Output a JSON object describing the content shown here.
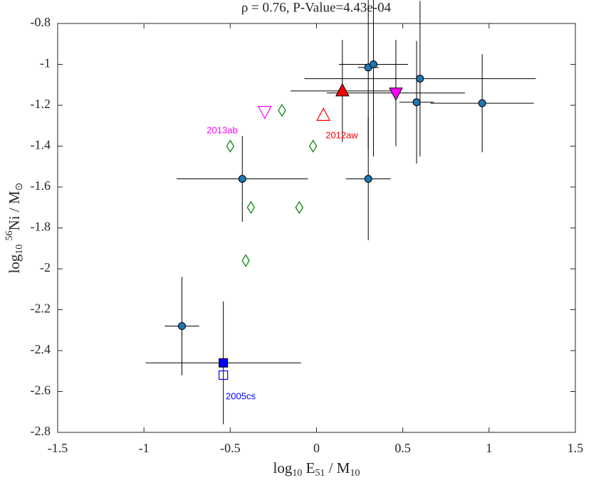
{
  "chart_data": {
    "type": "scatter",
    "title": "ρ = 0.76, P-Value=4.43e-04",
    "xlabel": [
      {
        "text": "log"
      },
      {
        "text": "10",
        "script": "sub"
      },
      {
        "text": " E"
      },
      {
        "text": "51",
        "script": "sub"
      },
      {
        "text": " / M"
      },
      {
        "text": "10",
        "script": "sub"
      }
    ],
    "ylabel": [
      {
        "text": "log"
      },
      {
        "text": "10",
        "script": "sub"
      },
      {
        "text": " "
      },
      {
        "text": "56",
        "script": "sup"
      },
      {
        "text": "Ni / M"
      },
      {
        "text": "⊙",
        "script": "sub"
      }
    ],
    "xlim": [
      -1.5,
      1.5
    ],
    "ylim": [
      -2.8,
      -0.8
    ],
    "xticks": [
      -1.5,
      -1,
      -0.5,
      0,
      0.5,
      1,
      1.5
    ],
    "yticks": [
      -2.8,
      -2.6,
      -2.4,
      -2.2,
      -2,
      -1.8,
      -1.6,
      -1.4,
      -1.2,
      -1,
      -0.8
    ],
    "series": [
      {
        "marker": "circle",
        "color": "#1f77b4",
        "filled": true,
        "x": [
          0.3,
          0.33,
          0.6,
          0.58,
          0.96,
          -0.43,
          0.3,
          -0.78
        ],
        "y": [
          -1.015,
          -1.0,
          -1.07,
          -1.185,
          -1.19,
          -1.56,
          -1.56,
          -2.28
        ],
        "xerr": [
          0.06,
          0.2,
          0.67,
          0.1,
          0.3,
          0.38,
          0.13,
          0.1
        ],
        "yerr": [
          0.4,
          0.45,
          0.38,
          0.3,
          0.24,
          0.21,
          0.3,
          0.24
        ]
      },
      {
        "marker": "square",
        "color": "#0000ff",
        "filled": true,
        "x": [
          -0.54
        ],
        "y": [
          -2.46
        ],
        "xerr": [
          0.45
        ],
        "yerr": [
          0.3
        ]
      },
      {
        "marker": "square",
        "color": "#0000ff",
        "filled": false,
        "x": [
          -0.54
        ],
        "y": [
          -2.52
        ]
      },
      {
        "marker": "triangle-up",
        "color": "#ff0000",
        "filled": true,
        "x": [
          0.15
        ],
        "y": [
          -1.13
        ],
        "xerr": [
          0.3
        ],
        "yerr": [
          0.25
        ]
      },
      {
        "marker": "triangle-down",
        "color": "#ff00ff",
        "filled": true,
        "x": [
          0.46
        ],
        "y": [
          -1.14
        ],
        "xerr": [
          0.4
        ],
        "yerr": [
          0.26
        ]
      },
      {
        "marker": "triangle-down",
        "color": "#ff00ff",
        "filled": false,
        "x": [
          -0.3
        ],
        "y": [
          -1.23
        ]
      },
      {
        "marker": "triangle-up",
        "color": "#ff0000",
        "filled": false,
        "x": [
          0.04
        ],
        "y": [
          -1.25
        ]
      },
      {
        "marker": "diamond",
        "color": "#008000",
        "filled": false,
        "x": [
          -0.2,
          -0.5,
          -0.02,
          -0.38,
          -0.1,
          -0.41
        ],
        "y": [
          -1.225,
          -1.4,
          -1.4,
          -1.7,
          -1.7,
          -1.96
        ]
      }
    ],
    "annotations": [
      {
        "text": "2013ab",
        "color": "#ff00ff"
      },
      {
        "text": "2012aw",
        "color": "#ff0000"
      },
      {
        "text": "2005cs",
        "color": "#0000ff"
      }
    ]
  }
}
